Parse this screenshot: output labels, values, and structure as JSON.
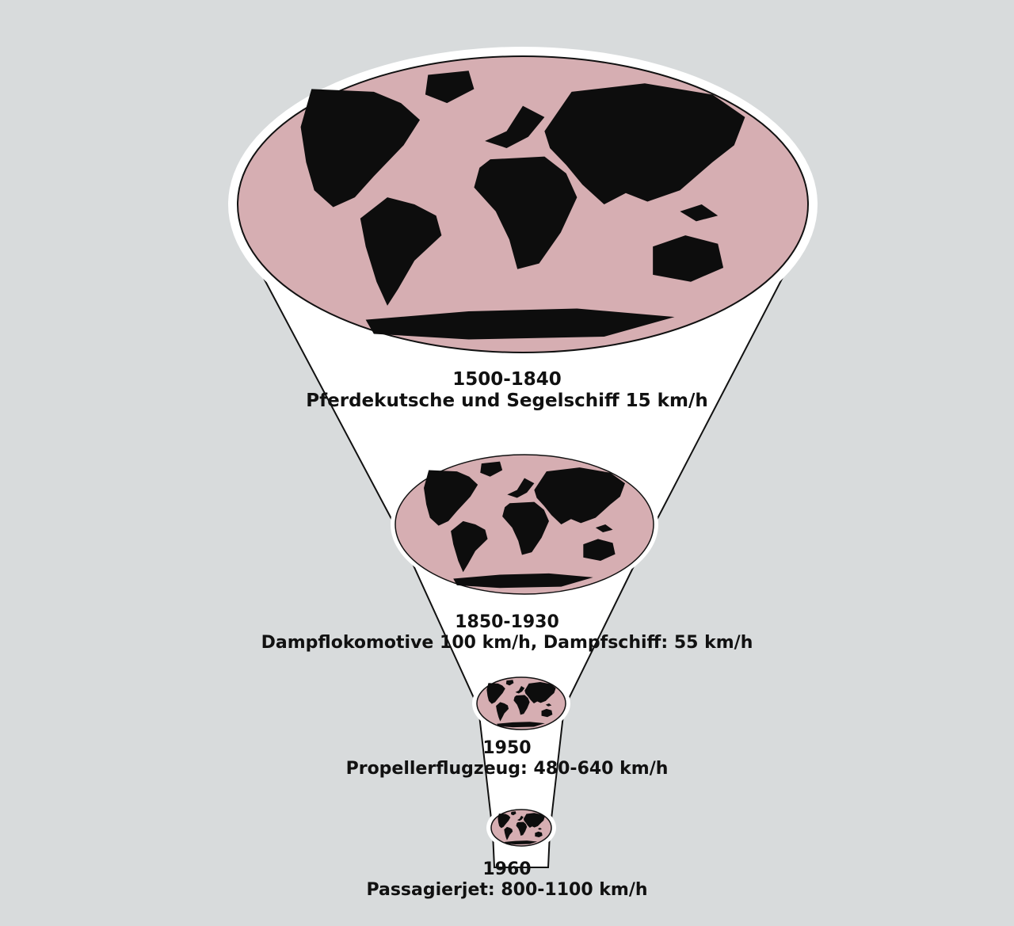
{
  "background_color": "#d8dbdc",
  "map_fill_color": "#d6aeb2",
  "land_color": "#0d0d0d",
  "funnel_color": "#ffffff",
  "stages": [
    {
      "years": "1500-1840",
      "description": "Pferdekutsche und Segelschiff 15 km/h"
    },
    {
      "years": "1850-1930",
      "description": "Dampflokomotive 100 km/h, Dampfschiff: 55 km/h"
    },
    {
      "years": "1950",
      "description": "Propellerflugzeug: 480-640 km/h"
    },
    {
      "years": "1960",
      "description": "Passagierjet: 800-1100 km/h"
    }
  ]
}
